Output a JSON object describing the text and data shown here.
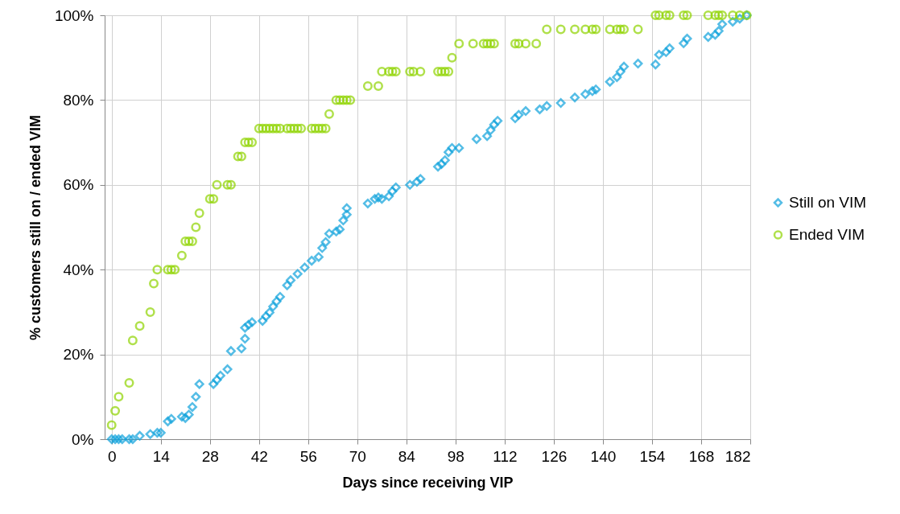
{
  "chart_data": {
    "type": "scatter",
    "xlabel": "Days since receiving VIP",
    "ylabel": "% customers still on / ended VIM",
    "xlim": [
      -2,
      182
    ],
    "xticks": [
      0,
      14,
      28,
      42,
      56,
      70,
      84,
      98,
      112,
      126,
      140,
      154,
      168,
      182
    ],
    "ylim": [
      0,
      100
    ],
    "yticks": [
      {
        "value": 0,
        "label": "0%"
      },
      {
        "value": 20,
        "label": "20%"
      },
      {
        "value": 40,
        "label": "40%"
      },
      {
        "value": 60,
        "label": "60%"
      },
      {
        "value": 80,
        "label": "80%"
      },
      {
        "value": 100,
        "label": "100%"
      }
    ],
    "grid": true,
    "legend": "right",
    "series": [
      {
        "name": "Still on VIM",
        "color": "#0ea2dc",
        "marker": "diamond",
        "x": [
          0,
          1,
          2,
          3,
          5,
          6,
          8,
          11,
          13,
          14,
          16,
          17,
          20,
          21,
          22,
          23,
          24,
          25,
          29,
          30,
          31,
          33,
          34,
          37,
          38,
          38,
          39,
          40,
          43,
          44,
          45,
          46,
          47,
          48,
          50,
          51,
          53,
          55,
          57,
          59,
          60,
          61,
          62,
          64,
          65,
          66,
          67,
          67,
          73,
          75,
          76,
          77,
          79,
          80,
          81,
          85,
          87,
          88,
          93,
          94,
          95,
          96,
          97,
          99,
          104,
          107,
          108,
          109,
          110,
          115,
          116,
          118,
          122,
          124,
          128,
          132,
          135,
          137,
          138,
          142,
          144,
          145,
          146,
          150,
          155,
          156,
          158,
          159,
          163,
          164,
          170,
          172,
          173,
          174,
          177,
          179,
          181
        ],
        "values": [
          0,
          0,
          0,
          0,
          0,
          0,
          0.8,
          1.2,
          1.5,
          1.5,
          4.2,
          4.8,
          5.3,
          5,
          5.8,
          7.6,
          10,
          13,
          13,
          14,
          15,
          16.5,
          20.8,
          21.4,
          23.7,
          26.3,
          27,
          27.6,
          27.9,
          29,
          29.9,
          31.3,
          32.5,
          33.6,
          36.3,
          37.5,
          39,
          40.5,
          42.1,
          43,
          45.1,
          46.5,
          48.5,
          49,
          49.5,
          51.6,
          53,
          54.5,
          55.6,
          56.7,
          57,
          56.7,
          57.3,
          58.5,
          59.4,
          60,
          60.7,
          61.4,
          64.3,
          64.9,
          65.8,
          67.7,
          68.7,
          68.7,
          70.8,
          71.5,
          72.9,
          74.2,
          75.1,
          75.7,
          76.5,
          77.4,
          77.8,
          78.6,
          79.3,
          80.6,
          81.4,
          82.1,
          82.5,
          84.3,
          85.4,
          86.7,
          87.9,
          88.6,
          88.4,
          90.7,
          91.3,
          92.2,
          93.4,
          94.5,
          94.9,
          95.4,
          96.3,
          97.9,
          98.5,
          99.2,
          100
        ]
      },
      {
        "name": "Ended VIM",
        "color": "#8fd400",
        "marker": "circle",
        "x": [
          0,
          1,
          2,
          5,
          6,
          8,
          11,
          12,
          13,
          16,
          17,
          18,
          20,
          21,
          22,
          23,
          24,
          25,
          28,
          29,
          30,
          33,
          34,
          36,
          37,
          38,
          39,
          40,
          42,
          43,
          44,
          45,
          46,
          47,
          48,
          50,
          51,
          52,
          53,
          54,
          57,
          58,
          59,
          60,
          61,
          62,
          64,
          65,
          66,
          67,
          68,
          73,
          76,
          77,
          79,
          80,
          81,
          85,
          86,
          88,
          93,
          94,
          95,
          96,
          97,
          99,
          103,
          106,
          107,
          108,
          109,
          115,
          116,
          118,
          121,
          124,
          128,
          132,
          135,
          137,
          138,
          142,
          144,
          145,
          146,
          150,
          155,
          156,
          158,
          159,
          163,
          164,
          170,
          172,
          173,
          174,
          177,
          179,
          181
        ],
        "values": [
          3.3,
          6.7,
          10,
          13.3,
          23.3,
          26.7,
          30,
          36.7,
          40,
          40,
          40,
          40,
          43.3,
          46.7,
          46.7,
          46.7,
          50,
          53.3,
          56.7,
          56.7,
          60,
          60,
          60,
          66.7,
          66.7,
          70,
          70,
          70,
          73.3,
          73.3,
          73.3,
          73.3,
          73.3,
          73.3,
          73.3,
          73.3,
          73.3,
          73.3,
          73.3,
          73.3,
          73.3,
          73.3,
          73.3,
          73.3,
          73.3,
          76.7,
          80,
          80,
          80,
          80,
          80,
          83.3,
          83.3,
          86.7,
          86.7,
          86.7,
          86.7,
          86.7,
          86.7,
          86.7,
          86.7,
          86.7,
          86.7,
          86.7,
          90,
          93.3,
          93.3,
          93.3,
          93.3,
          93.3,
          93.3,
          93.3,
          93.3,
          93.3,
          93.3,
          96.7,
          96.7,
          96.7,
          96.7,
          96.7,
          96.7,
          96.7,
          96.7,
          96.7,
          96.7,
          96.7,
          100,
          100,
          100,
          100,
          100,
          100,
          100,
          100,
          100,
          100,
          100,
          100,
          100
        ]
      }
    ]
  }
}
